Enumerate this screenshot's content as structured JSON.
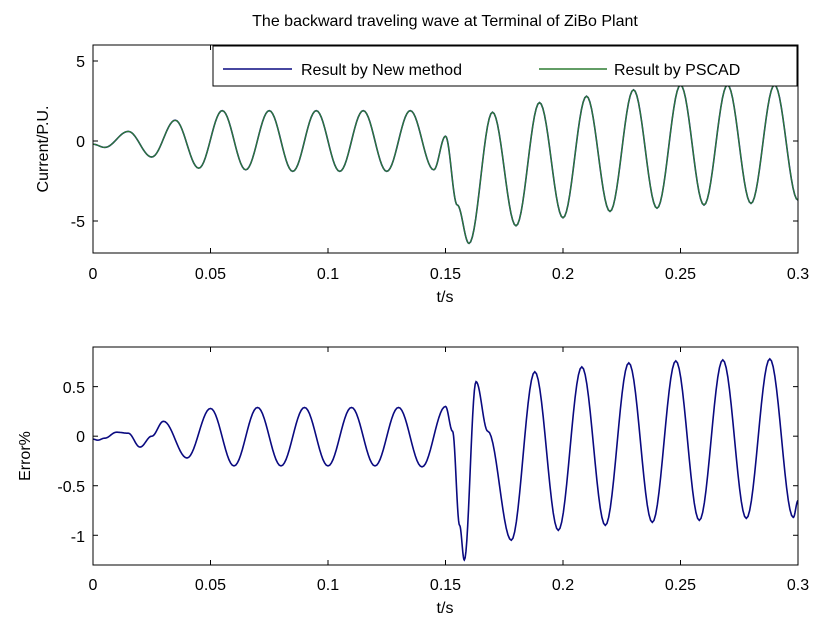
{
  "chart_data": [
    {
      "type": "line",
      "title": "The backward traveling wave at Terminal of ZiBo Plant",
      "xlabel": "t/s",
      "ylabel": "Current/P.U.",
      "xlim": [
        0,
        0.3
      ],
      "ylim": [
        -7,
        6
      ],
      "xticks": [
        "0",
        "0.05",
        "0.1",
        "0.15",
        "0.2",
        "0.25",
        "0.3"
      ],
      "yticks": [
        "-5",
        "0",
        "5"
      ],
      "legend_position": "top-right",
      "grid": false,
      "series": [
        {
          "name": "Result by New method",
          "color": "#0a0a80",
          "x": [
            0,
            0.005,
            0.015,
            0.025,
            0.035,
            0.045,
            0.055,
            0.065,
            0.075,
            0.085,
            0.095,
            0.105,
            0.115,
            0.125,
            0.135,
            0.145,
            0.15,
            0.155,
            0.16,
            0.17,
            0.18,
            0.19,
            0.2,
            0.21,
            0.22,
            0.23,
            0.24,
            0.25,
            0.26,
            0.27,
            0.28,
            0.29,
            0.3
          ],
          "y": [
            -0.2,
            -0.4,
            0.6,
            -1.0,
            1.3,
            -1.7,
            1.9,
            -1.8,
            1.9,
            -1.9,
            1.9,
            -1.9,
            1.9,
            -1.9,
            1.9,
            -1.8,
            0.3,
            -4.0,
            -6.4,
            1.8,
            -5.3,
            2.4,
            -4.8,
            2.8,
            -4.4,
            3.2,
            -4.2,
            3.5,
            -4.0,
            3.5,
            -3.9,
            3.5,
            -3.7
          ]
        },
        {
          "name": "Result by PSCAD",
          "color": "#2e7d32",
          "x": [
            0,
            0.005,
            0.015,
            0.025,
            0.035,
            0.045,
            0.055,
            0.065,
            0.075,
            0.085,
            0.095,
            0.105,
            0.115,
            0.125,
            0.135,
            0.145,
            0.15,
            0.155,
            0.16,
            0.17,
            0.18,
            0.19,
            0.2,
            0.21,
            0.22,
            0.23,
            0.24,
            0.25,
            0.26,
            0.27,
            0.28,
            0.29,
            0.3
          ],
          "y": [
            -0.2,
            -0.4,
            0.6,
            -1.0,
            1.3,
            -1.7,
            1.9,
            -1.8,
            1.9,
            -1.9,
            1.9,
            -1.9,
            1.9,
            -1.9,
            1.9,
            -1.8,
            0.3,
            -4.0,
            -6.4,
            1.8,
            -5.3,
            2.4,
            -4.8,
            2.8,
            -4.4,
            3.2,
            -4.2,
            3.5,
            -4.0,
            3.5,
            -3.9,
            3.5,
            -3.7
          ]
        }
      ]
    },
    {
      "type": "line",
      "title": "",
      "xlabel": "t/s",
      "ylabel": "Error%",
      "xlim": [
        0,
        0.3
      ],
      "ylim": [
        -1.3,
        0.9
      ],
      "xticks": [
        "0",
        "0.05",
        "0.1",
        "0.15",
        "0.2",
        "0.25",
        "0.3"
      ],
      "yticks": [
        "-1",
        "-0.5",
        "0",
        "0.5"
      ],
      "grid": false,
      "series": [
        {
          "color": "#0a0a80",
          "x": [
            0,
            0.002,
            0.005,
            0.01,
            0.015,
            0.02,
            0.025,
            0.03,
            0.04,
            0.05,
            0.06,
            0.07,
            0.08,
            0.09,
            0.1,
            0.11,
            0.12,
            0.13,
            0.14,
            0.15,
            0.153,
            0.156,
            0.158,
            0.163,
            0.168,
            0.178,
            0.188,
            0.198,
            0.208,
            0.218,
            0.228,
            0.238,
            0.248,
            0.258,
            0.268,
            0.278,
            0.288,
            0.298,
            0.3
          ],
          "y": [
            -0.03,
            -0.04,
            -0.02,
            0.04,
            0.03,
            -0.11,
            0.0,
            0.15,
            -0.22,
            0.28,
            -0.3,
            0.29,
            -0.3,
            0.29,
            -0.3,
            0.29,
            -0.3,
            0.29,
            -0.31,
            0.3,
            0.05,
            -0.9,
            -1.25,
            0.55,
            0.05,
            -1.05,
            0.65,
            -0.95,
            0.7,
            -0.9,
            0.74,
            -0.87,
            0.76,
            -0.85,
            0.77,
            -0.83,
            0.78,
            -0.82,
            -0.65
          ]
        }
      ]
    }
  ]
}
